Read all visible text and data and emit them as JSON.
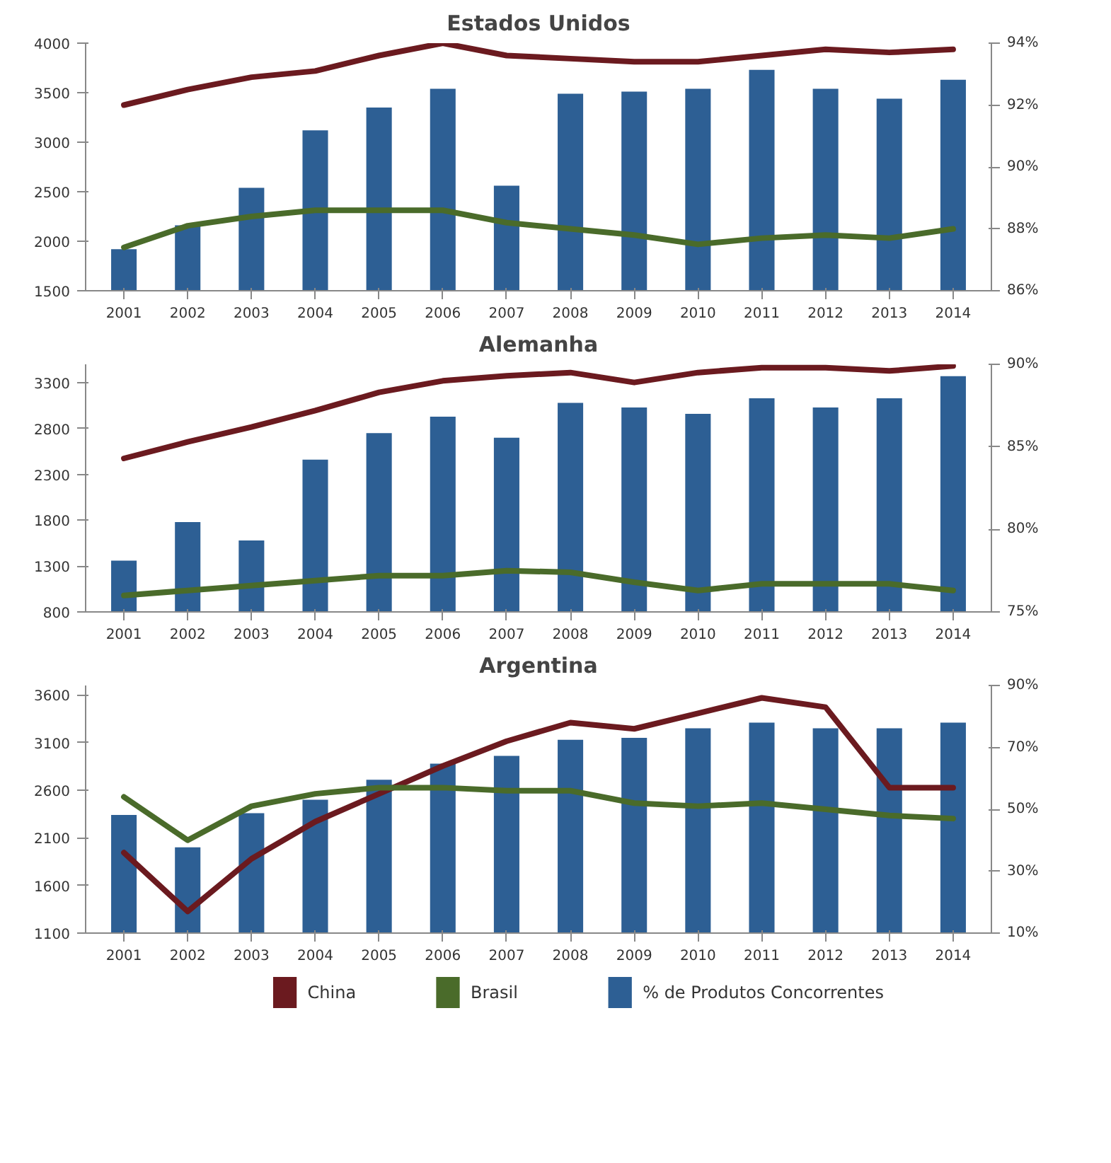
{
  "chart_data": [
    {
      "type": "bar",
      "title": "Estados Unidos",
      "categories": [
        "2001",
        "2002",
        "2003",
        "2004",
        "2005",
        "2006",
        "2007",
        "2008",
        "2009",
        "2010",
        "2011",
        "2012",
        "2013",
        "2014"
      ],
      "ylim": [
        1500,
        4000
      ],
      "yticks": [
        1500,
        2000,
        2500,
        3000,
        3500,
        4000
      ],
      "y2lim": [
        86,
        94
      ],
      "y2ticks": [
        {
          "value": 86,
          "label": "86%"
        },
        {
          "value": 88,
          "label": "88%"
        },
        {
          "value": 90,
          "label": "90%"
        },
        {
          "value": 92,
          "label": "92%"
        },
        {
          "value": 94,
          "label": "94%"
        }
      ],
      "grid": false,
      "legend": false,
      "series": [
        {
          "color": "#2d5f94",
          "values": [
            1920,
            2160,
            2540,
            3120,
            3350,
            3540,
            2560,
            3490,
            3510,
            3540,
            3730,
            3540,
            3440,
            3630
          ]
        },
        {
          "type": "line",
          "axis": "y2",
          "color": "#6b1a1f",
          "values": [
            92.0,
            92.5,
            92.9,
            93.1,
            93.6,
            94.0,
            93.6,
            93.5,
            93.4,
            93.4,
            93.6,
            93.8,
            93.7,
            93.8
          ]
        },
        {
          "type": "line",
          "axis": "y2",
          "color": "#4a6b2a",
          "values": [
            87.4,
            88.1,
            88.4,
            88.6,
            88.6,
            88.6,
            88.2,
            88.0,
            87.8,
            87.5,
            87.7,
            87.8,
            87.7,
            88.0
          ]
        }
      ]
    },
    {
      "type": "bar",
      "title": "Alemanha",
      "categories": [
        "2001",
        "2002",
        "2003",
        "2004",
        "2005",
        "2006",
        "2007",
        "2008",
        "2009",
        "2010",
        "2011",
        "2012",
        "2013",
        "2014"
      ],
      "ylim": [
        800,
        3500
      ],
      "yticks": [
        800,
        1300,
        1800,
        2300,
        2800,
        3300
      ],
      "y2lim": [
        75,
        90
      ],
      "y2ticks": [
        {
          "value": 75,
          "label": "75%"
        },
        {
          "value": 80,
          "label": "80%"
        },
        {
          "value": 85,
          "label": "85%"
        },
        {
          "value": 90,
          "label": "90%"
        }
      ],
      "grid": false,
      "legend": false,
      "series": [
        {
          "color": "#2d5f94",
          "values": [
            1360,
            1780,
            1580,
            2460,
            2750,
            2930,
            2700,
            3080,
            3030,
            2960,
            3130,
            3030,
            3130,
            3370
          ]
        },
        {
          "type": "line",
          "axis": "y2",
          "color": "#6b1a1f",
          "values": [
            84.3,
            85.3,
            86.2,
            87.2,
            88.3,
            89.0,
            89.3,
            89.5,
            88.9,
            89.5,
            89.8,
            89.8,
            89.6,
            89.9
          ]
        },
        {
          "type": "line",
          "axis": "y2",
          "color": "#4a6b2a",
          "values": [
            76.0,
            76.3,
            76.6,
            76.9,
            77.2,
            77.2,
            77.5,
            77.4,
            76.8,
            76.3,
            76.7,
            76.7,
            76.7,
            76.3
          ]
        }
      ]
    },
    {
      "type": "bar",
      "title": "Argentina",
      "categories": [
        "2001",
        "2002",
        "2003",
        "2004",
        "2005",
        "2006",
        "2007",
        "2008",
        "2009",
        "2010",
        "2011",
        "2012",
        "2013",
        "2014"
      ],
      "ylim": [
        1100,
        3700
      ],
      "yticks": [
        1100,
        1600,
        2100,
        2600,
        3100,
        3600
      ],
      "y2lim": [
        10,
        90
      ],
      "y2ticks": [
        {
          "value": 10,
          "label": "10%"
        },
        {
          "value": 30,
          "label": "30%"
        },
        {
          "value": 50,
          "label": "50%"
        },
        {
          "value": 70,
          "label": "70%"
        },
        {
          "value": 90,
          "label": "90%"
        }
      ],
      "grid": false,
      "legend": "bottom",
      "series": [
        {
          "name": "% de Produtos Concorrentes",
          "color": "#2d5f94",
          "values": [
            2340,
            2000,
            2360,
            2500,
            2710,
            2880,
            2960,
            3130,
            3150,
            3250,
            3310,
            3250,
            3250,
            3310
          ]
        },
        {
          "type": "line",
          "axis": "y2",
          "name": "China",
          "color": "#6b1a1f",
          "values": [
            36,
            17,
            34,
            46,
            55,
            64,
            72,
            78,
            76,
            81,
            86,
            83,
            57,
            57
          ]
        },
        {
          "type": "line",
          "axis": "y2",
          "name": "Brasil",
          "color": "#4a6b2a",
          "values": [
            54,
            40,
            51,
            55,
            57,
            57,
            56,
            56,
            52,
            51,
            52,
            50,
            48,
            47
          ]
        }
      ]
    }
  ]
}
